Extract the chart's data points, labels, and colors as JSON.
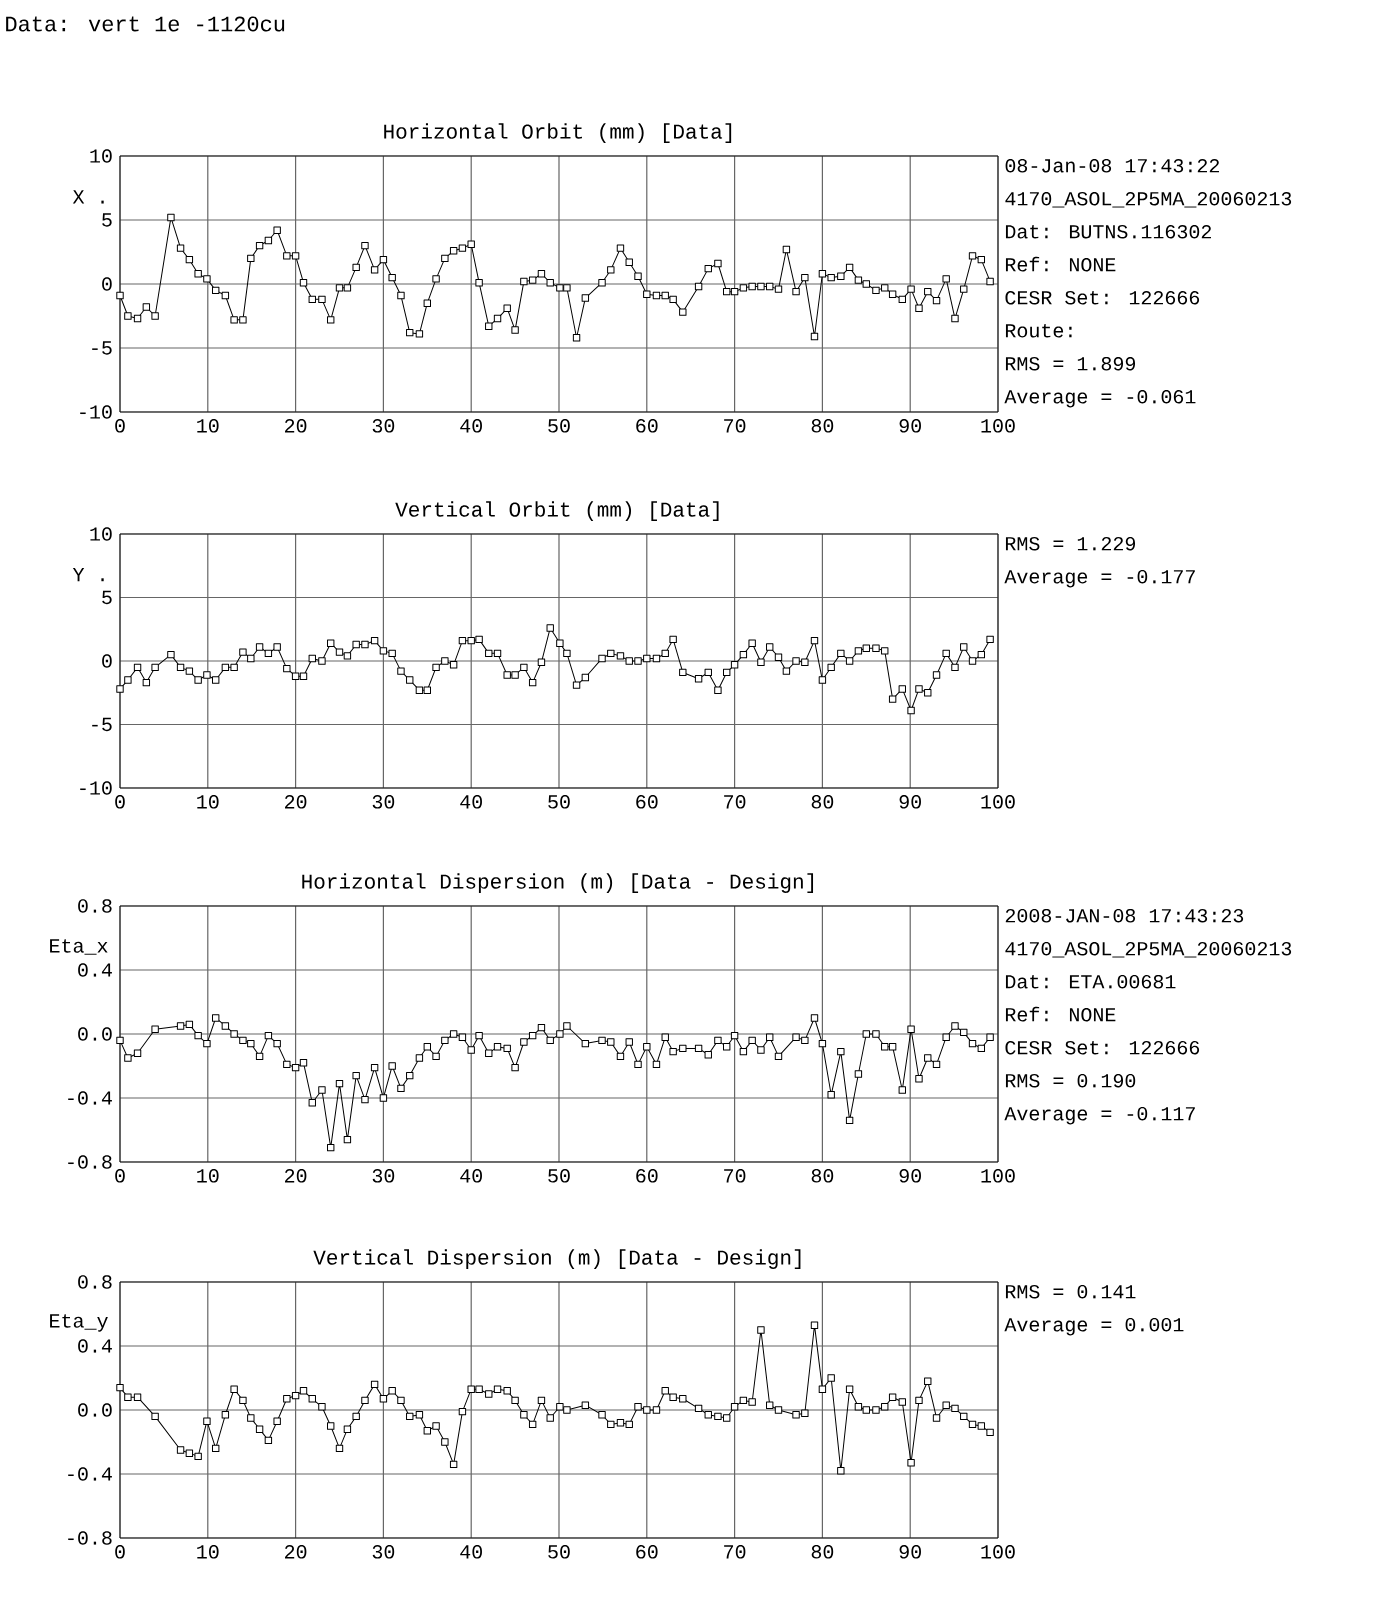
{
  "chart_data": [
    {
      "type": "line",
      "title": "Horizontal Orbit (mm) [Data]",
      "ylabel": "X .",
      "xlim": [
        0,
        100
      ],
      "xticks": [
        0,
        10,
        20,
        30,
        40,
        50,
        60,
        70,
        80,
        90,
        100
      ],
      "ylim": [
        -10,
        10
      ],
      "yticks": [
        -10,
        -5,
        0,
        5,
        10
      ],
      "grid": true,
      "marker": "square",
      "line_style": "solid",
      "annotations": [
        "Data: vert 1e -1120cu",
        "08-Jan-08 17:43:22",
        "4170_ASOL_2P5MA_20060213",
        "Dat: BUTNS.116302",
        "Ref: NONE",
        "CESR Set: 122666",
        "Route:",
        "RMS =   1.899",
        "Average =  -0.061"
      ],
      "series": [
        {
          "color": "#000000",
          "x": [
            0,
            0.9,
            2.0,
            3.0,
            4.0,
            5.8,
            6.9,
            7.9,
            8.9,
            9.9,
            10.9,
            12.0,
            13.0,
            14.0,
            14.9,
            15.9,
            16.9,
            17.9,
            19.0,
            20.0,
            20.9,
            21.9,
            23.0,
            24.0,
            25.0,
            25.9,
            26.9,
            27.9,
            29.0,
            30.0,
            31.0,
            32.0,
            33.0,
            34.1,
            35.0,
            36.0,
            37.0,
            38.0,
            39.0,
            40.0,
            40.9,
            42.0,
            43.0,
            44.1,
            45.0,
            46.0,
            47.0,
            48.0,
            49.0,
            50.1,
            50.9,
            52.0,
            53.0,
            54.9,
            55.9,
            57.0,
            58.0,
            59.0,
            60.0,
            61.1,
            62.1,
            63.0,
            64.1,
            65.9,
            67.0,
            68.1,
            69.1,
            70.0,
            71.0,
            72.0,
            73.0,
            74.0,
            75.0,
            75.9,
            77.0,
            78.0,
            79.1,
            80.0,
            81.0,
            82.1,
            83.1,
            84.1,
            85.0,
            86.1,
            87.1,
            88.0,
            89.1,
            90.1,
            91.0,
            92.0,
            93.0,
            94.1,
            95.1,
            96.1,
            97.1,
            98.1,
            99.1
          ],
          "values": [
            -0.9,
            -2.5,
            -2.7,
            -1.8,
            -2.5,
            5.2,
            2.8,
            1.9,
            0.8,
            0.4,
            -0.5,
            -0.9,
            -2.8,
            -2.8,
            2.0,
            3.0,
            3.4,
            4.2,
            2.2,
            2.2,
            0.1,
            -1.2,
            -1.2,
            -2.8,
            -0.3,
            -0.3,
            1.3,
            3.0,
            1.1,
            1.9,
            0.5,
            -0.9,
            -3.8,
            -3.9,
            -1.5,
            0.4,
            2.0,
            2.6,
            2.8,
            3.1,
            0.1,
            -3.3,
            -2.7,
            -1.9,
            -3.6,
            0.2,
            0.3,
            0.8,
            0.1,
            -0.3,
            -0.3,
            -4.2,
            -1.1,
            0.1,
            1.1,
            2.8,
            1.7,
            0.6,
            -0.8,
            -0.9,
            -0.9,
            -1.2,
            -2.2,
            -0.2,
            1.2,
            1.6,
            -0.6,
            -0.6,
            -0.3,
            -0.2,
            -0.2,
            -0.2,
            -0.4,
            2.7,
            -0.6,
            0.5,
            -4.1,
            0.8,
            0.5,
            0.6,
            1.3,
            0.3,
            0.0,
            -0.5,
            -0.3,
            -0.8,
            -1.2,
            -0.4,
            -1.9,
            -0.6,
            -1.3,
            0.4,
            -2.7,
            -0.4,
            2.2,
            1.9,
            0.2
          ]
        }
      ]
    },
    {
      "type": "line",
      "title": "Vertical Orbit (mm) [Data]",
      "ylabel": "Y .",
      "xlim": [
        0,
        100
      ],
      "xticks": [
        0,
        10,
        20,
        30,
        40,
        50,
        60,
        70,
        80,
        90,
        100
      ],
      "ylim": [
        -10,
        10
      ],
      "yticks": [
        -10,
        -5,
        0,
        5,
        10
      ],
      "grid": true,
      "marker": "square",
      "line_style": "solid",
      "annotations": [
        "RMS =   1.229",
        "Average =  -0.177"
      ],
      "series": [
        {
          "color": "#000000",
          "x": [
            0,
            0.9,
            2.0,
            3.0,
            4.0,
            5.8,
            6.9,
            7.9,
            8.9,
            9.9,
            10.9,
            12.0,
            13.0,
            14.0,
            14.9,
            15.9,
            16.9,
            17.9,
            19.0,
            20.0,
            20.9,
            21.9,
            23.0,
            24.0,
            25.0,
            25.9,
            26.9,
            27.9,
            29.0,
            30.0,
            31.0,
            32.0,
            33.0,
            34.1,
            35.0,
            36.0,
            37.0,
            38.0,
            39.0,
            40.0,
            40.9,
            42.0,
            43.0,
            44.1,
            45.0,
            46.0,
            47.0,
            48.0,
            49.0,
            50.1,
            50.9,
            52.0,
            53.0,
            54.9,
            55.9,
            57.0,
            58.0,
            59.0,
            60.0,
            61.1,
            62.1,
            63.0,
            64.1,
            65.9,
            67.0,
            68.1,
            69.1,
            70.0,
            71.0,
            72.0,
            73.0,
            74.0,
            75.0,
            75.9,
            77.0,
            78.0,
            79.1,
            80.0,
            81.0,
            82.1,
            83.1,
            84.1,
            85.0,
            86.1,
            87.1,
            88.0,
            89.1,
            90.1,
            91.0,
            92.0,
            93.0,
            94.1,
            95.1,
            96.1,
            97.1,
            98.1,
            99.1
          ],
          "values": [
            -2.2,
            -1.5,
            -0.5,
            -1.7,
            -0.5,
            0.5,
            -0.5,
            -0.8,
            -1.5,
            -1.1,
            -1.5,
            -0.5,
            -0.5,
            0.7,
            0.2,
            1.1,
            0.6,
            1.1,
            -0.6,
            -1.2,
            -1.2,
            0.2,
            0.0,
            1.4,
            0.7,
            0.4,
            1.3,
            1.3,
            1.6,
            0.8,
            0.6,
            -0.8,
            -1.5,
            -2.3,
            -2.3,
            -0.5,
            0.0,
            -0.3,
            1.6,
            1.6,
            1.7,
            0.6,
            0.6,
            -1.1,
            -1.1,
            -0.5,
            -1.7,
            -0.1,
            2.6,
            1.4,
            0.6,
            -1.9,
            -1.3,
            0.2,
            0.6,
            0.4,
            0.0,
            0.0,
            0.2,
            0.2,
            0.6,
            1.7,
            -0.9,
            -1.4,
            -0.9,
            -2.3,
            -0.9,
            -0.3,
            0.5,
            1.4,
            -0.1,
            1.1,
            0.3,
            -0.8,
            0.0,
            -0.1,
            1.6,
            -1.5,
            -0.5,
            0.6,
            0.0,
            0.8,
            1.0,
            1.0,
            0.8,
            -3.0,
            -2.2,
            -3.9,
            -2.2,
            -2.5,
            -1.1,
            0.6,
            -0.5,
            1.1,
            0.0,
            0.5,
            1.7
          ]
        }
      ]
    },
    {
      "type": "line",
      "title": "Horizontal Dispersion (m) [Data - Design]",
      "ylabel": "Eta_x",
      "xlim": [
        0,
        100
      ],
      "xticks": [
        0,
        10,
        20,
        30,
        40,
        50,
        60,
        70,
        80,
        90,
        100
      ],
      "ylim": [
        -0.8,
        0.8
      ],
      "yticks": [
        -0.8,
        -0.4,
        {
          "value": 0,
          "label": "0.0"
        },
        0.4,
        0.8
      ],
      "grid": true,
      "marker": "square",
      "line_style": "solid",
      "annotations": [
        "2008-JAN-08 17:43:23",
        "4170_ASOL_2P5MA_20060213",
        "Dat: ETA.00681",
        "Ref: NONE",
        "CESR Set: 122666",
        "RMS =   0.190",
        "Average =  -0.117"
      ],
      "series": [
        {
          "color": "#000000",
          "x": [
            0,
            0.9,
            2.0,
            4.0,
            6.9,
            7.9,
            8.9,
            9.9,
            10.9,
            12.0,
            13.0,
            14.0,
            14.9,
            15.9,
            16.9,
            17.9,
            19.0,
            20.0,
            20.9,
            21.9,
            23.0,
            24.0,
            25.0,
            25.9,
            26.9,
            27.9,
            29.0,
            30.0,
            31.0,
            32.0,
            33.0,
            34.1,
            35.0,
            36.0,
            37.0,
            38.0,
            39.0,
            40.0,
            40.9,
            42.0,
            43.0,
            44.1,
            45.0,
            46.0,
            47.0,
            48.0,
            49.0,
            50.1,
            50.9,
            53.0,
            54.9,
            55.9,
            57.0,
            58.0,
            59.0,
            60.0,
            61.1,
            62.1,
            63.0,
            64.1,
            65.9,
            67.0,
            68.1,
            69.1,
            70.0,
            71.0,
            72.0,
            73.0,
            74.0,
            75.0,
            77.0,
            78.0,
            79.1,
            80.0,
            81.0,
            82.1,
            83.1,
            84.1,
            85.0,
            86.1,
            87.1,
            88.0,
            89.1,
            90.1,
            91.0,
            92.0,
            93.0,
            94.1,
            95.1,
            96.1,
            97.1,
            98.1,
            99.1
          ],
          "values": [
            -0.04,
            -0.15,
            -0.12,
            0.03,
            0.05,
            0.06,
            -0.01,
            -0.06,
            0.1,
            0.05,
            0.0,
            -0.04,
            -0.06,
            -0.14,
            -0.01,
            -0.06,
            -0.19,
            -0.21,
            -0.18,
            -0.43,
            -0.35,
            -0.71,
            -0.31,
            -0.66,
            -0.26,
            -0.41,
            -0.21,
            -0.4,
            -0.2,
            -0.34,
            -0.26,
            -0.15,
            -0.08,
            -0.14,
            -0.04,
            0.0,
            -0.02,
            -0.1,
            -0.01,
            -0.12,
            -0.08,
            -0.09,
            -0.21,
            -0.05,
            -0.01,
            0.04,
            -0.04,
            0.0,
            0.05,
            -0.06,
            -0.04,
            -0.05,
            -0.14,
            -0.05,
            -0.19,
            -0.08,
            -0.19,
            -0.02,
            -0.11,
            -0.09,
            -0.09,
            -0.13,
            -0.04,
            -0.08,
            -0.01,
            -0.11,
            -0.04,
            -0.1,
            -0.02,
            -0.14,
            -0.02,
            -0.04,
            0.1,
            -0.06,
            -0.38,
            -0.11,
            -0.54,
            -0.25,
            0.0,
            0.0,
            -0.08,
            -0.08,
            -0.35,
            0.03,
            -0.28,
            -0.15,
            -0.19,
            -0.02,
            0.05,
            0.01,
            -0.06,
            -0.09,
            -0.02
          ]
        }
      ]
    },
    {
      "type": "line",
      "title": "Vertical Dispersion (m) [Data - Design]",
      "ylabel": "Eta_y",
      "xlim": [
        0,
        100
      ],
      "xticks": [
        0,
        10,
        20,
        30,
        40,
        50,
        60,
        70,
        80,
        90,
        100
      ],
      "ylim": [
        -0.8,
        0.8
      ],
      "yticks": [
        -0.8,
        -0.4,
        {
          "value": 0,
          "label": "0.0"
        },
        0.4,
        0.8
      ],
      "grid": true,
      "marker": "square",
      "line_style": "solid",
      "annotations": [
        "RMS =   0.141",
        "Average =   0.001"
      ],
      "series": [
        {
          "color": "#000000",
          "x": [
            0,
            0.9,
            2.0,
            4.0,
            6.9,
            7.9,
            8.9,
            9.9,
            10.9,
            12.0,
            13.0,
            14.0,
            14.9,
            15.9,
            16.9,
            17.9,
            19.0,
            20.0,
            20.9,
            21.9,
            23.0,
            24.0,
            25.0,
            25.9,
            26.9,
            27.9,
            29.0,
            30.0,
            31.0,
            32.0,
            33.0,
            34.1,
            35.0,
            36.0,
            37.0,
            38.0,
            39.0,
            40.0,
            40.9,
            42.0,
            43.0,
            44.1,
            45.0,
            46.0,
            47.0,
            48.0,
            49.0,
            50.1,
            50.9,
            53.0,
            54.9,
            55.9,
            57.0,
            58.0,
            59.0,
            60.0,
            61.1,
            62.1,
            63.0,
            64.1,
            65.9,
            67.0,
            68.1,
            69.1,
            70.0,
            71.0,
            72.0,
            73.0,
            74.0,
            75.0,
            77.0,
            78.0,
            79.1,
            80.0,
            81.0,
            82.1,
            83.1,
            84.1,
            85.0,
            86.1,
            87.1,
            88.0,
            89.1,
            90.1,
            91.0,
            92.0,
            93.0,
            94.1,
            95.1,
            96.1,
            97.1,
            98.1,
            99.1
          ],
          "values": [
            0.14,
            0.08,
            0.08,
            -0.04,
            -0.25,
            -0.27,
            -0.29,
            -0.07,
            -0.24,
            -0.03,
            0.13,
            0.06,
            -0.05,
            -0.12,
            -0.19,
            -0.07,
            0.07,
            0.09,
            0.12,
            0.07,
            0.02,
            -0.1,
            -0.24,
            -0.12,
            -0.04,
            0.06,
            0.16,
            0.07,
            0.12,
            0.06,
            -0.04,
            -0.03,
            -0.13,
            -0.1,
            -0.2,
            -0.34,
            -0.01,
            0.13,
            0.13,
            0.1,
            0.13,
            0.12,
            0.06,
            -0.03,
            -0.09,
            0.06,
            -0.05,
            0.02,
            0.0,
            0.03,
            -0.03,
            -0.09,
            -0.08,
            -0.09,
            0.02,
            0.0,
            0.0,
            0.12,
            0.08,
            0.07,
            0.01,
            -0.03,
            -0.04,
            -0.05,
            0.02,
            0.06,
            0.05,
            0.5,
            0.03,
            0.0,
            -0.03,
            -0.02,
            0.53,
            0.13,
            0.2,
            -0.38,
            0.13,
            0.02,
            0.0,
            0.0,
            0.02,
            0.08,
            0.05,
            -0.33,
            0.06,
            0.18,
            -0.05,
            0.03,
            0.01,
            -0.04,
            -0.09,
            -0.1,
            -0.14
          ]
        }
      ]
    }
  ]
}
